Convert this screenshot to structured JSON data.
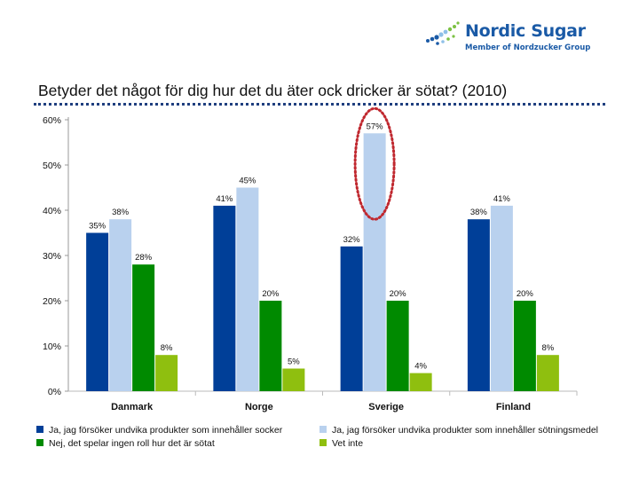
{
  "logo": {
    "name": "Nordic Sugar",
    "sub": "Member of Nordzucker Group",
    "icon": "sugar-dots-logo-icon",
    "colors": {
      "dark": "#1a5aa6",
      "light": "#8fc0e8",
      "green": "#7cc142"
    }
  },
  "slide": {
    "title": "Betyder det något för dig hur det du äter ock dricker är sötat? (2010)"
  },
  "chart_data": {
    "type": "bar",
    "title": "Betyder det något för dig hur det du äter ock dricker är sötat? (2010)",
    "categories": [
      "Danmark",
      "Norge",
      "Sverige",
      "Finland"
    ],
    "ylim": [
      0,
      60
    ],
    "yticks": [
      "0%",
      "10%",
      "20%",
      "30%",
      "40%",
      "50%",
      "60%"
    ],
    "series": [
      {
        "name": "Ja, jag försöker undvika produkter som innehåller socker",
        "color": "#003f98",
        "values": [
          35,
          41,
          32,
          38
        ],
        "labels": [
          "35%",
          "41%",
          "32%",
          "38%"
        ]
      },
      {
        "name": "Ja, jag försöker undvika produkter som innehåller sötningsmedel",
        "color": "#b9d1ee",
        "values": [
          38,
          45,
          57,
          41
        ],
        "labels": [
          "38%",
          "45%",
          "57%",
          "41%"
        ]
      },
      {
        "name": "Nej, det spelar ingen roll hur det är sötat",
        "color": "#008a00",
        "values": [
          28,
          20,
          20,
          20
        ],
        "labels": [
          "28%",
          "20%",
          "20%",
          "20%"
        ]
      },
      {
        "name": "Vet inte",
        "color": "#8fbf0f",
        "values": [
          8,
          5,
          4,
          8
        ],
        "labels": [
          "8%",
          "5%",
          "4%",
          "8%"
        ]
      }
    ],
    "annotation": {
      "type": "dotted-ellipse",
      "color": "#c0282f",
      "category": "Sverige",
      "series": 1
    }
  }
}
